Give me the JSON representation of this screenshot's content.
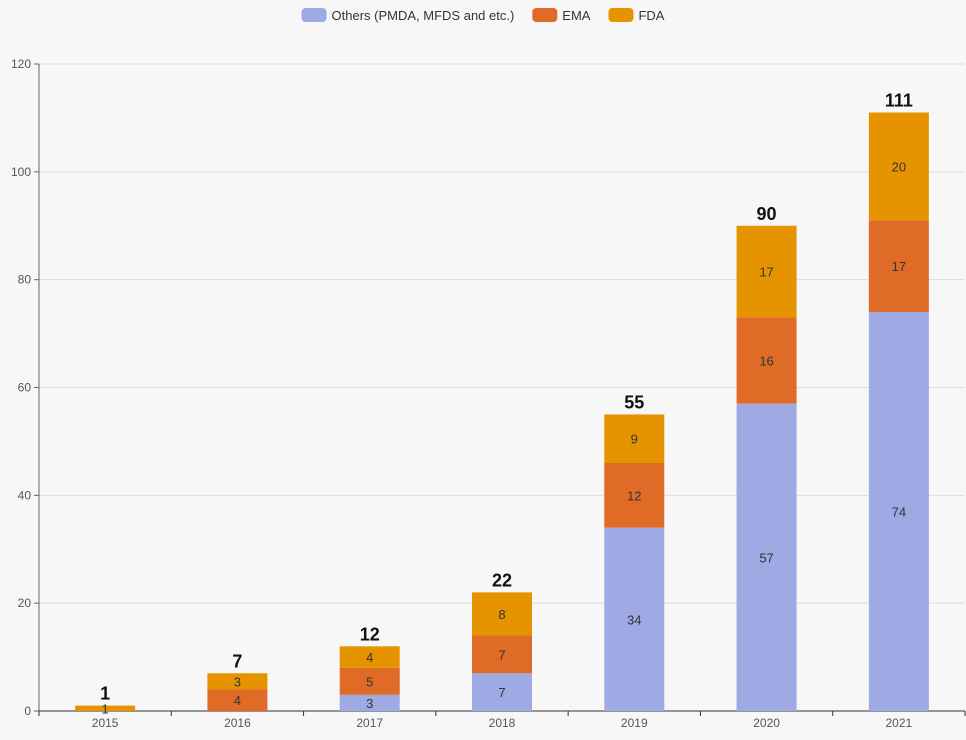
{
  "chart_data": {
    "type": "bar",
    "stacked": true,
    "categories": [
      "2015",
      "2016",
      "2017",
      "2018",
      "2019",
      "2020",
      "2021"
    ],
    "series": [
      {
        "name": "Others (PMDA, MFDS and etc.)",
        "color": "#9fa9e4",
        "values": [
          0,
          0,
          3,
          7,
          34,
          57,
          74
        ]
      },
      {
        "name": "EMA",
        "color": "#e06b26",
        "values": [
          0,
          4,
          5,
          7,
          12,
          16,
          17
        ]
      },
      {
        "name": "FDA",
        "color": "#e59400",
        "values": [
          1,
          3,
          4,
          8,
          9,
          17,
          20
        ]
      }
    ],
    "totals": [
      1,
      7,
      12,
      22,
      55,
      90,
      111
    ],
    "ylim": [
      0,
      120
    ],
    "yticks": [
      0,
      20,
      40,
      60,
      80,
      100,
      120
    ],
    "grid": true,
    "legend_position": "top-center",
    "xlabel": "",
    "ylabel": "",
    "title": ""
  }
}
